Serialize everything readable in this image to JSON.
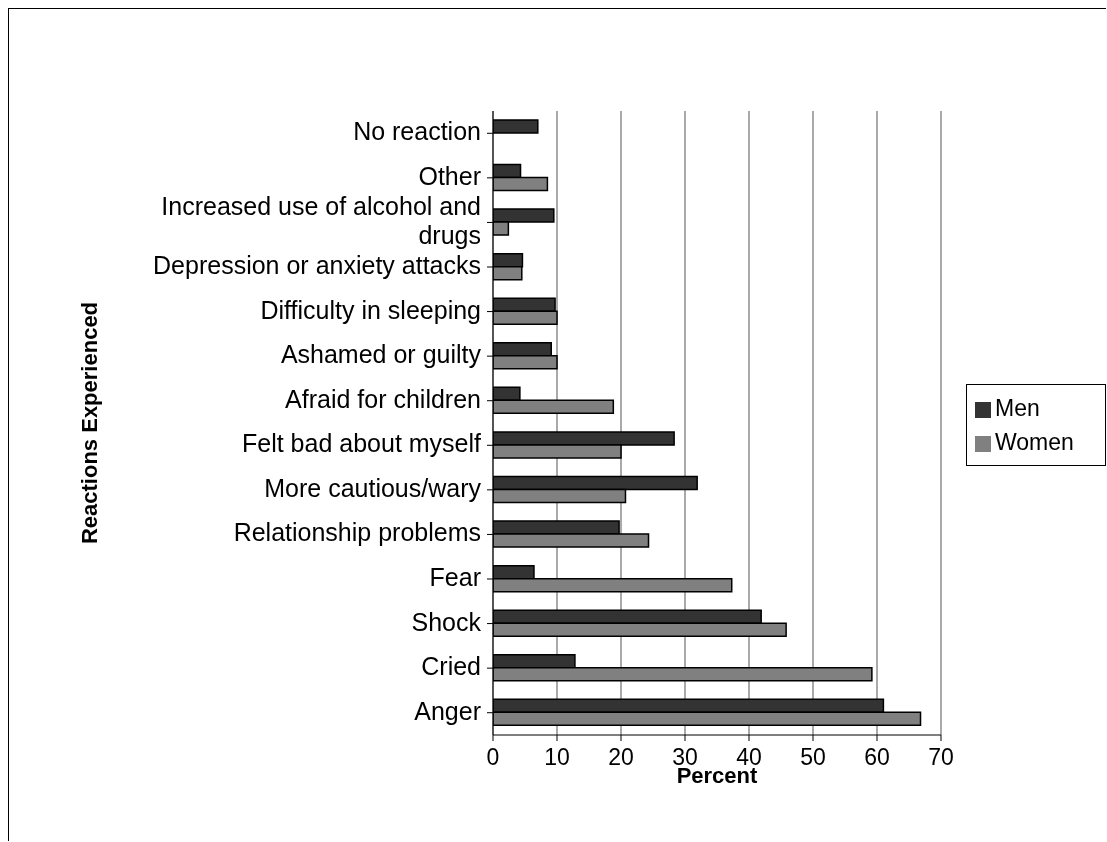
{
  "chart_data": {
    "type": "bar",
    "orientation": "horizontal",
    "xlabel": "Percent",
    "ylabel": "Reactions Experienced",
    "categories": [
      "No reaction",
      "Other",
      "Increased use of alcohol and drugs",
      "Depression or anxiety attacks",
      "Difficulty in sleeping",
      "Ashamed or guilty",
      "Afraid for children",
      "Felt bad about myself",
      "More cautious/wary",
      "Relationship problems",
      "Fear",
      "Shock",
      "Cried",
      "Anger"
    ],
    "series": [
      {
        "name": "Men",
        "color": "#333333",
        "values": [
          7.0,
          4.3,
          9.5,
          4.6,
          9.7,
          9.1,
          4.2,
          28.3,
          31.9,
          19.7,
          6.4,
          41.9,
          12.8,
          61.0
        ]
      },
      {
        "name": "Women",
        "color": "#808080",
        "values": [
          null,
          8.5,
          2.4,
          4.5,
          10.0,
          10.0,
          18.8,
          20.0,
          20.7,
          24.3,
          37.3,
          45.8,
          59.2,
          66.8
        ]
      }
    ],
    "xlim": [
      0,
      70
    ],
    "xticks": [
      0,
      10,
      20,
      30,
      40,
      50,
      60,
      70
    ],
    "grid": "x",
    "legend": "right"
  }
}
